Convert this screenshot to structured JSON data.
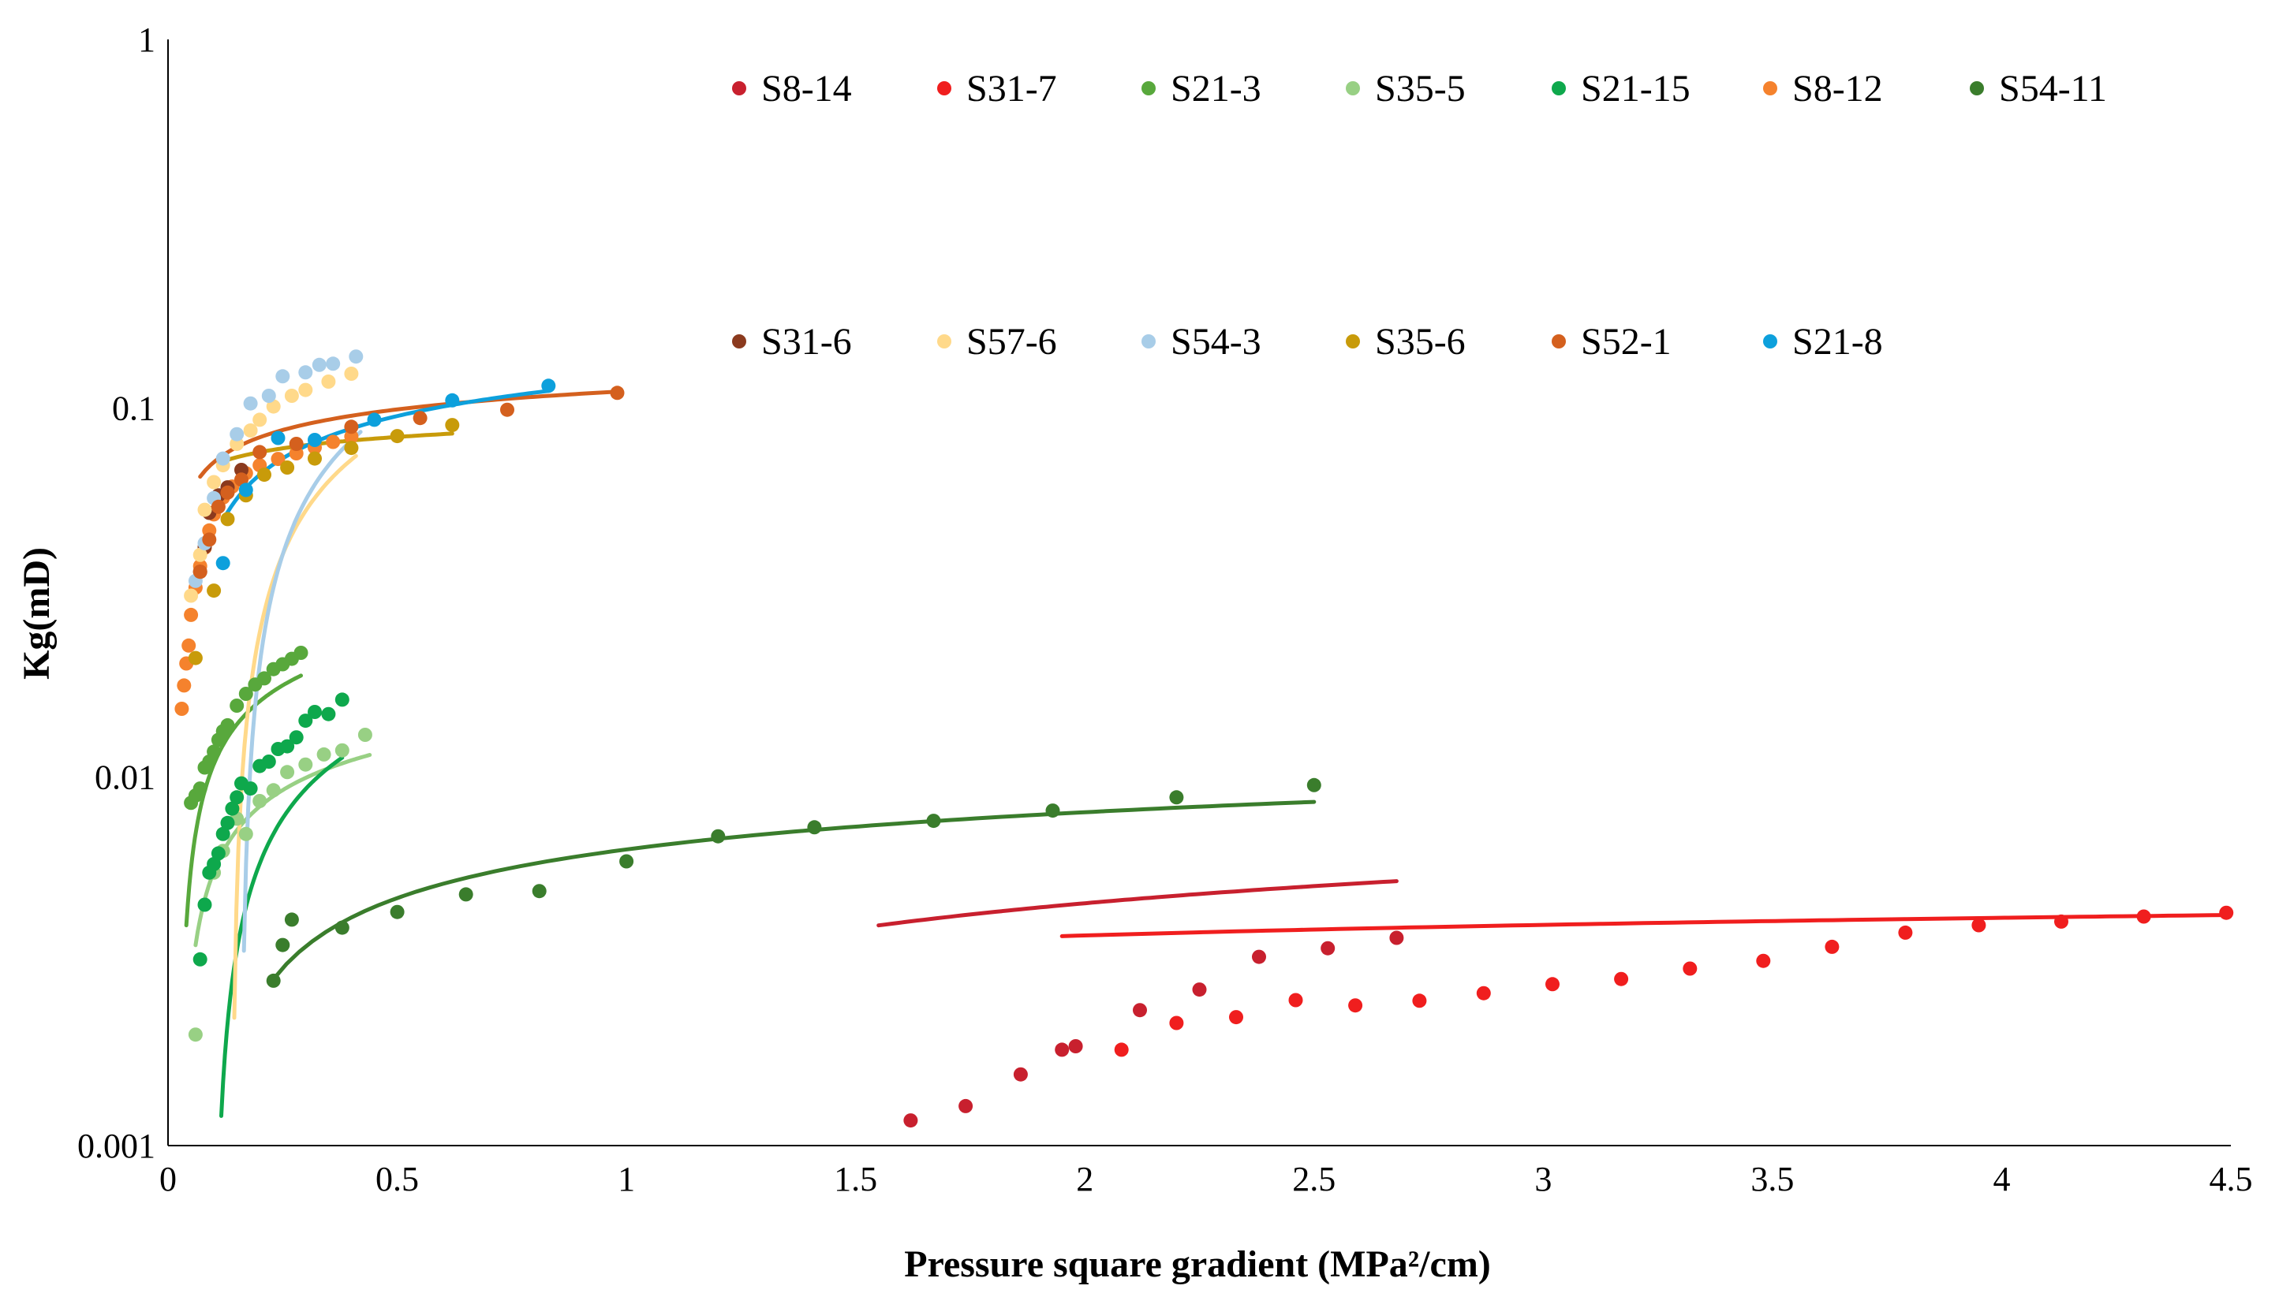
{
  "chart_data": {
    "type": "scatter",
    "title": "",
    "xlabel": "Pressure square gradient (MPa²/cm)",
    "ylabel": "Kg(mD)",
    "xlim": [
      0,
      4.5
    ],
    "ylim": [
      0.001,
      1
    ],
    "yscale": "log",
    "grid": false,
    "legend_position": "top",
    "x_ticks": [
      "0",
      "0.5",
      "1",
      "1.5",
      "2",
      "2.5",
      "3",
      "3.5",
      "4",
      "4.5"
    ],
    "y_ticks": [
      "0.001",
      "0.01",
      "0.1",
      "1"
    ],
    "series": [
      {
        "name": "S8-14",
        "color": "#c8202e",
        "points": [
          [
            1.62,
            0.00117
          ],
          [
            1.74,
            0.00128
          ],
          [
            1.86,
            0.00156
          ],
          [
            1.95,
            0.00182
          ],
          [
            1.98,
            0.00186
          ],
          [
            2.12,
            0.00233
          ],
          [
            2.25,
            0.00265
          ],
          [
            2.38,
            0.00325
          ],
          [
            2.53,
            0.00343
          ],
          [
            2.68,
            0.00366
          ]
        ],
        "trend": {
          "a": 0.002947,
          "b": 0.0023,
          "from": 1.55,
          "to": 2.68
        }
      },
      {
        "name": "S31-7",
        "color": "#f01e1e",
        "points": [
          [
            2.08,
            0.00182
          ],
          [
            2.2,
            0.00215
          ],
          [
            2.33,
            0.00223
          ],
          [
            2.46,
            0.00248
          ],
          [
            2.59,
            0.0024
          ],
          [
            2.73,
            0.00247
          ],
          [
            2.87,
            0.00259
          ],
          [
            3.02,
            0.00274
          ],
          [
            3.17,
            0.00283
          ],
          [
            3.32,
            0.00302
          ],
          [
            3.48,
            0.00317
          ],
          [
            3.63,
            0.00346
          ],
          [
            3.79,
            0.00378
          ],
          [
            3.95,
            0.00396
          ],
          [
            4.13,
            0.00405
          ],
          [
            4.31,
            0.00418
          ],
          [
            4.49,
            0.00428
          ]
        ],
        "trend": {
          "a": 0.003281,
          "b": 0.000625,
          "from": 1.95,
          "to": 4.49
        }
      },
      {
        "name": "S21-3",
        "color": "#58a83c",
        "points": [
          [
            0.05,
            0.0085
          ],
          [
            0.06,
            0.0089
          ],
          [
            0.07,
            0.0093
          ],
          [
            0.08,
            0.0106
          ],
          [
            0.09,
            0.011
          ],
          [
            0.1,
            0.0117
          ],
          [
            0.11,
            0.0126
          ],
          [
            0.12,
            0.0133
          ],
          [
            0.13,
            0.0138
          ],
          [
            0.15,
            0.0156
          ],
          [
            0.17,
            0.0168
          ],
          [
            0.19,
            0.0178
          ],
          [
            0.21,
            0.0185
          ],
          [
            0.23,
            0.0196
          ],
          [
            0.25,
            0.0202
          ],
          [
            0.27,
            0.0209
          ],
          [
            0.29,
            0.0217
          ]
        ],
        "trend": {
          "a": 0.0281,
          "b": 0.0075,
          "from": 0.04,
          "to": 0.29
        }
      },
      {
        "name": "S35-5",
        "color": "#98d084",
        "points": [
          [
            0.06,
            0.002
          ],
          [
            0.1,
            0.0055
          ],
          [
            0.12,
            0.0063
          ],
          [
            0.15,
            0.0077
          ],
          [
            0.17,
            0.007
          ],
          [
            0.2,
            0.0086
          ],
          [
            0.23,
            0.0092
          ],
          [
            0.26,
            0.0103
          ],
          [
            0.3,
            0.0108
          ],
          [
            0.34,
            0.0115
          ],
          [
            0.38,
            0.0118
          ],
          [
            0.43,
            0.013
          ]
        ],
        "trend": {
          "a": 0.01475,
          "b": 0.004,
          "from": 0.06,
          "to": 0.44
        }
      },
      {
        "name": "S21-15",
        "color": "#0ea84c",
        "points": [
          [
            0.07,
            0.0032
          ],
          [
            0.08,
            0.0045
          ],
          [
            0.09,
            0.0055
          ],
          [
            0.1,
            0.0058
          ],
          [
            0.11,
            0.0062
          ],
          [
            0.12,
            0.007
          ],
          [
            0.13,
            0.0075
          ],
          [
            0.14,
            0.0082
          ],
          [
            0.15,
            0.0088
          ],
          [
            0.16,
            0.0096
          ],
          [
            0.18,
            0.0093
          ],
          [
            0.2,
            0.0107
          ],
          [
            0.22,
            0.011
          ],
          [
            0.24,
            0.0119
          ],
          [
            0.26,
            0.0121
          ],
          [
            0.28,
            0.0128
          ],
          [
            0.3,
            0.0142
          ],
          [
            0.32,
            0.015
          ],
          [
            0.35,
            0.0148
          ],
          [
            0.38,
            0.0162
          ]
        ],
        "trend": {
          "a": 0.0195,
          "b": 0.0085,
          "from": 0.065,
          "to": 0.38
        }
      },
      {
        "name": "S8-12",
        "color": "#f5822d",
        "points": [
          [
            0.03,
            0.0153
          ],
          [
            0.035,
            0.0177
          ],
          [
            0.04,
            0.0203
          ],
          [
            0.045,
            0.0227
          ],
          [
            0.05,
            0.0275
          ],
          [
            0.06,
            0.0326
          ],
          [
            0.07,
            0.0373
          ],
          [
            0.08,
            0.0418
          ],
          [
            0.09,
            0.0466
          ],
          [
            0.1,
            0.0515
          ],
          [
            0.12,
            0.0572
          ],
          [
            0.14,
            0.0613
          ],
          [
            0.17,
            0.0666
          ],
          [
            0.2,
            0.07
          ],
          [
            0.24,
            0.0728
          ],
          [
            0.28,
            0.0754
          ],
          [
            0.32,
            0.0782
          ],
          [
            0.36,
            0.081
          ],
          [
            0.4,
            0.0838
          ]
        ]
      },
      {
        "name": "S54-11",
        "color": "#3a7d2c",
        "points": [
          [
            0.23,
            0.0028
          ],
          [
            0.25,
            0.0035
          ],
          [
            0.27,
            0.0041
          ],
          [
            0.38,
            0.0039
          ],
          [
            0.5,
            0.0043
          ],
          [
            0.65,
            0.0048
          ],
          [
            0.81,
            0.0049
          ],
          [
            1.0,
            0.0059
          ],
          [
            1.2,
            0.0069
          ],
          [
            1.41,
            0.0073
          ],
          [
            1.67,
            0.0076
          ],
          [
            1.93,
            0.0081
          ],
          [
            2.2,
            0.0088
          ],
          [
            2.5,
            0.0095
          ]
        ],
        "trend": {
          "a": 0.006355,
          "b": 0.0024,
          "from": 0.23,
          "to": 2.5
        }
      },
      {
        "name": "S31-6",
        "color": "#8b3a1e",
        "points": [
          [
            0.07,
            0.036
          ],
          [
            0.08,
            0.042
          ],
          [
            0.09,
            0.052
          ],
          [
            0.11,
            0.058
          ],
          [
            0.13,
            0.061
          ],
          [
            0.16,
            0.068
          ]
        ]
      },
      {
        "name": "S57-6",
        "color": "#ffd98a",
        "points": [
          [
            0.05,
            0.031
          ],
          [
            0.07,
            0.04
          ],
          [
            0.08,
            0.053
          ],
          [
            0.1,
            0.063
          ],
          [
            0.12,
            0.07
          ],
          [
            0.15,
            0.08
          ],
          [
            0.18,
            0.087
          ],
          [
            0.2,
            0.093
          ],
          [
            0.23,
            0.101
          ],
          [
            0.27,
            0.108
          ],
          [
            0.3,
            0.112
          ],
          [
            0.35,
            0.118
          ],
          [
            0.4,
            0.124
          ]
        ],
        "trend": {
          "a": 0.1357,
          "b": 0.069,
          "from": 0.05,
          "to": 0.41
        }
      },
      {
        "name": "S54-3",
        "color": "#a8cde8",
        "points": [
          [
            0.06,
            0.034
          ],
          [
            0.08,
            0.043
          ],
          [
            0.1,
            0.057
          ],
          [
            0.12,
            0.073
          ],
          [
            0.15,
            0.085
          ],
          [
            0.18,
            0.103
          ],
          [
            0.22,
            0.108
          ],
          [
            0.25,
            0.122
          ],
          [
            0.3,
            0.125
          ],
          [
            0.33,
            0.131
          ],
          [
            0.36,
            0.132
          ],
          [
            0.41,
            0.138
          ]
        ],
        "trend": {
          "a": 0.1634,
          "b": 0.089,
          "from": 0.05,
          "to": 0.42
        }
      },
      {
        "name": "S35-6",
        "color": "#c89b0a",
        "points": [
          [
            0.06,
            0.021
          ],
          [
            0.1,
            0.032
          ],
          [
            0.13,
            0.05
          ],
          [
            0.17,
            0.058
          ],
          [
            0.21,
            0.066
          ],
          [
            0.26,
            0.069
          ],
          [
            0.32,
            0.073
          ],
          [
            0.4,
            0.078
          ],
          [
            0.5,
            0.084
          ],
          [
            0.62,
            0.09
          ]
        ],
        "trend": {
          "a": 0.08925,
          "b": 0.00825,
          "from": 0.12,
          "to": 0.62
        }
      },
      {
        "name": "S52-1",
        "color": "#d4601e",
        "points": [
          [
            0.07,
            0.036
          ],
          [
            0.09,
            0.044
          ],
          [
            0.11,
            0.054
          ],
          [
            0.13,
            0.059
          ],
          [
            0.16,
            0.064
          ],
          [
            0.2,
            0.076
          ],
          [
            0.28,
            0.08
          ],
          [
            0.4,
            0.089
          ],
          [
            0.55,
            0.094
          ],
          [
            0.74,
            0.099
          ],
          [
            0.98,
            0.11
          ]
        ],
        "trend": {
          "a": 0.1112,
          "b": 0.0173,
          "from": 0.07,
          "to": 0.98
        }
      },
      {
        "name": "S21-8",
        "color": "#0da0dc",
        "points": [
          [
            0.12,
            0.038
          ],
          [
            0.17,
            0.06
          ],
          [
            0.24,
            0.083
          ],
          [
            0.32,
            0.082
          ],
          [
            0.45,
            0.093
          ],
          [
            0.62,
            0.105
          ],
          [
            0.83,
            0.115
          ]
        ],
        "trend": {
          "a": 0.1173,
          "b": 0.0319,
          "from": 0.12,
          "to": 0.83
        }
      }
    ]
  }
}
